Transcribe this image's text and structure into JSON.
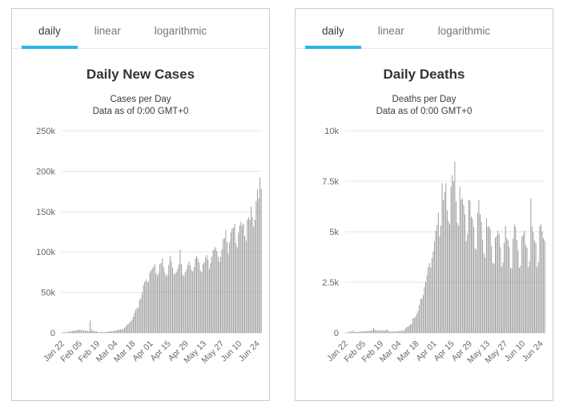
{
  "colors": {
    "accent_tab_underline": "#2cb4e8",
    "bar": "#999999",
    "grid_line": "#e6e6e6",
    "axis_line": "#ccd6eb",
    "axis_label": "#666666",
    "title_text": "#333333",
    "subtitle_text": "#3d3d3d",
    "tab_active_text": "#3a3a3a",
    "tab_inactive_text": "#6f7880",
    "panel_border": "#cccccc"
  },
  "panels": [
    {
      "tabs": [
        {
          "label": "daily",
          "active": true
        },
        {
          "label": "linear",
          "active": false
        },
        {
          "label": "logarithmic",
          "active": false
        }
      ],
      "title": "Daily New Cases",
      "subtitle1": "Cases per Day",
      "subtitle2": "Data as of 0:00 GMT+0"
    },
    {
      "tabs": [
        {
          "label": "daily",
          "active": true
        },
        {
          "label": "linear",
          "active": false
        },
        {
          "label": "logarithmic",
          "active": false
        }
      ],
      "title": "Daily Deaths",
      "subtitle1": "Deaths per Day",
      "subtitle2": "Data as of 0:00 GMT+0"
    }
  ],
  "chart_data": [
    {
      "type": "bar",
      "title": "Daily New Cases",
      "subtitle": "Cases per Day — Data as of 0:00 GMT+0",
      "xlabel": "",
      "ylabel": "",
      "legend": "none",
      "grid": true,
      "bar_color": "#999999",
      "ylim": [
        0,
        250000
      ],
      "y_ticks": [
        {
          "label": "0",
          "value": 0
        },
        {
          "label": "50k",
          "value": 50000
        },
        {
          "label": "100k",
          "value": 100000
        },
        {
          "label": "150k",
          "value": 150000
        },
        {
          "label": "200k",
          "value": 200000
        },
        {
          "label": "250k",
          "value": 250000
        }
      ],
      "x_tick_labels": [
        "Jan 22",
        "Feb 05",
        "Feb 19",
        "Mar 04",
        "Mar 18",
        "Apr 01",
        "Apr 15",
        "Apr 29",
        "May 13",
        "May 27",
        "Jun 10",
        "Jun 24"
      ],
      "x_tick_indices": [
        0,
        14,
        28,
        42,
        56,
        70,
        84,
        98,
        112,
        126,
        140,
        154
      ],
      "values": [
        500,
        650,
        800,
        780,
        820,
        1750,
        1780,
        1980,
        2100,
        2600,
        2830,
        2840,
        3240,
        3930,
        3730,
        3160,
        3440,
        2680,
        3020,
        2550,
        2060,
        2060,
        15150,
        4050,
        2600,
        2120,
        2070,
        1890,
        620,
        550,
        900,
        1000,
        700,
        620,
        920,
        1030,
        1390,
        1440,
        1800,
        1880,
        2000,
        2610,
        2440,
        2930,
        3600,
        4020,
        4030,
        4330,
        4620,
        6280,
        7510,
        10100,
        10800,
        12300,
        13900,
        16300,
        19800,
        24800,
        28900,
        30700,
        31300,
        40800,
        42500,
        49100,
        59200,
        63200,
        66100,
        62500,
        63600,
        74700,
        76800,
        79500,
        81500,
        85000,
        74000,
        71000,
        74000,
        85000,
        86000,
        92000,
        81000,
        74000,
        70000,
        72000,
        84000,
        95000,
        89000,
        81000,
        73000,
        73000,
        75000,
        79000,
        85000,
        103000,
        85000,
        72000,
        70000,
        75000,
        78000,
        84000,
        88000,
        83000,
        78000,
        76000,
        81000,
        92000,
        95000,
        92000,
        87000,
        77000,
        75000,
        85000,
        87000,
        93000,
        96000,
        91000,
        79000,
        86000,
        94000,
        102000,
        104000,
        106000,
        101000,
        94000,
        88000,
        94000,
        103000,
        116000,
        117000,
        127000,
        112000,
        98000,
        112000,
        124000,
        129000,
        130000,
        135000,
        111000,
        106000,
        124000,
        133000,
        137000,
        133000,
        135000,
        120000,
        114000,
        140000,
        143000,
        140000,
        156000,
        143000,
        131000,
        140000,
        163000,
        177000,
        166000,
        192000,
        178000
      ]
    },
    {
      "type": "bar",
      "title": "Daily Deaths",
      "subtitle": "Deaths per Day — Data as of 0:00 GMT+0",
      "xlabel": "",
      "ylabel": "",
      "legend": "none",
      "grid": true,
      "bar_color": "#999999",
      "ylim": [
        0,
        10000
      ],
      "y_ticks": [
        {
          "label": "0",
          "value": 0
        },
        {
          "label": "2.5k",
          "value": 2500
        },
        {
          "label": "5k",
          "value": 5000
        },
        {
          "label": "7.5k",
          "value": 7500
        },
        {
          "label": "10k",
          "value": 10000
        }
      ],
      "x_tick_labels": [
        "Jan 22",
        "Feb 05",
        "Feb 19",
        "Mar 04",
        "Mar 18",
        "Apr 01",
        "Apr 15",
        "Apr 29",
        "May 13",
        "May 27",
        "Jun 10",
        "Jun 24"
      ],
      "x_tick_indices": [
        0,
        14,
        28,
        42,
        56,
        70,
        84,
        98,
        112,
        126,
        140,
        154
      ],
      "values": [
        17,
        25,
        26,
        56,
        65,
        66,
        107,
        38,
        43,
        46,
        46,
        57,
        65,
        66,
        73,
        73,
        86,
        89,
        97,
        108,
        97,
        146,
        254,
        143,
        143,
        106,
        98,
        136,
        116,
        119,
        112,
        105,
        150,
        160,
        67,
        63,
        58,
        55,
        68,
        58,
        67,
        73,
        84,
        100,
        101,
        99,
        112,
        204,
        275,
        321,
        345,
        416,
        438,
        711,
        753,
        786,
        939,
        1078,
        1353,
        1690,
        1684,
        1869,
        2276,
        2523,
        2843,
        3245,
        3452,
        3228,
        3688,
        4032,
        4520,
        5047,
        5331,
        5948,
        4766,
        5306,
        7412,
        6556,
        6965,
        7400,
        6048,
        5531,
        5372,
        7217,
        7800,
        7500,
        8470,
        6500,
        5434,
        5292,
        7229,
        6588,
        6651,
        6318,
        5857,
        4541,
        4892,
        6571,
        6545,
        5745,
        5640,
        5245,
        4190,
        4112,
        5938,
        6576,
        5868,
        5486,
        4622,
        3944,
        3733,
        5662,
        5236,
        5272,
        5120,
        4289,
        3444,
        3422,
        4699,
        4794,
        5055,
        4879,
        4234,
        3248,
        3480,
        4448,
        5288,
        4692,
        4584,
        4232,
        3205,
        3180,
        4650,
        5360,
        5250,
        4580,
        4060,
        3220,
        3330,
        4770,
        4870,
        5060,
        4350,
        4210,
        3250,
        3540,
        6660,
        5260,
        4970,
        4570,
        4440,
        3250,
        3500,
        5270,
        5380,
        5010,
        4680,
        4560
      ]
    }
  ]
}
